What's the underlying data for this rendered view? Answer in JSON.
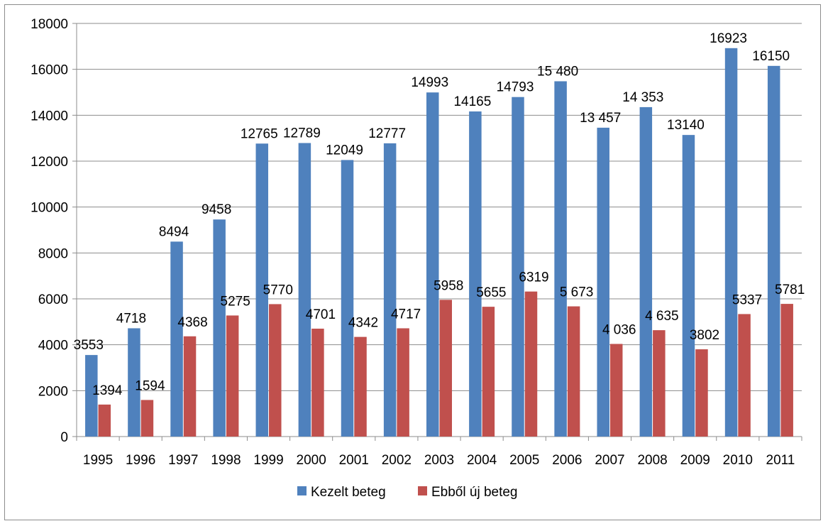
{
  "chart_data": {
    "type": "bar",
    "categories": [
      "1995",
      "1996",
      "1997",
      "1998",
      "1999",
      "2000",
      "2001",
      "2002",
      "2003",
      "2004",
      "2005",
      "2006",
      "2007",
      "2008",
      "2009",
      "2010",
      "2011"
    ],
    "series": [
      {
        "name": "Kezelt beteg",
        "color": "#4f81bd",
        "values": [
          3553,
          4718,
          8494,
          9458,
          12765,
          12789,
          12049,
          12777,
          14993,
          14165,
          14793,
          15480,
          13457,
          14353,
          13140,
          16923,
          16150
        ],
        "labels": [
          "3553",
          "4718",
          "8494",
          "9458",
          "12765",
          "12789",
          "12049",
          "12777",
          "14993",
          "14165",
          "14793",
          "15 480",
          "13 457",
          "14 353",
          "13140",
          "16923",
          "16150"
        ]
      },
      {
        "name": "Ebből új beteg",
        "color": "#c0504d",
        "values": [
          1394,
          1594,
          4368,
          5275,
          5770,
          4701,
          4342,
          4717,
          5958,
          5655,
          6319,
          5673,
          4036,
          4635,
          3802,
          5337,
          5781
        ],
        "labels": [
          "1394",
          "1594",
          "4368",
          "5275",
          "5770",
          "4701",
          "4342",
          "4717",
          "5958",
          "5655",
          "6319",
          "5 673",
          "4 036",
          "4 635",
          "3802",
          "5337",
          "5781"
        ]
      }
    ],
    "ylim": [
      0,
      18000
    ],
    "yticks": [
      0,
      2000,
      4000,
      6000,
      8000,
      10000,
      12000,
      14000,
      16000,
      18000
    ],
    "ytick_labels": [
      "0",
      "2000",
      "4000",
      "6000",
      "8000",
      "10000",
      "12000",
      "14000",
      "16000",
      "18000"
    ],
    "grid": true,
    "legend": "bottom",
    "title": "",
    "xlabel": "",
    "ylabel": ""
  }
}
